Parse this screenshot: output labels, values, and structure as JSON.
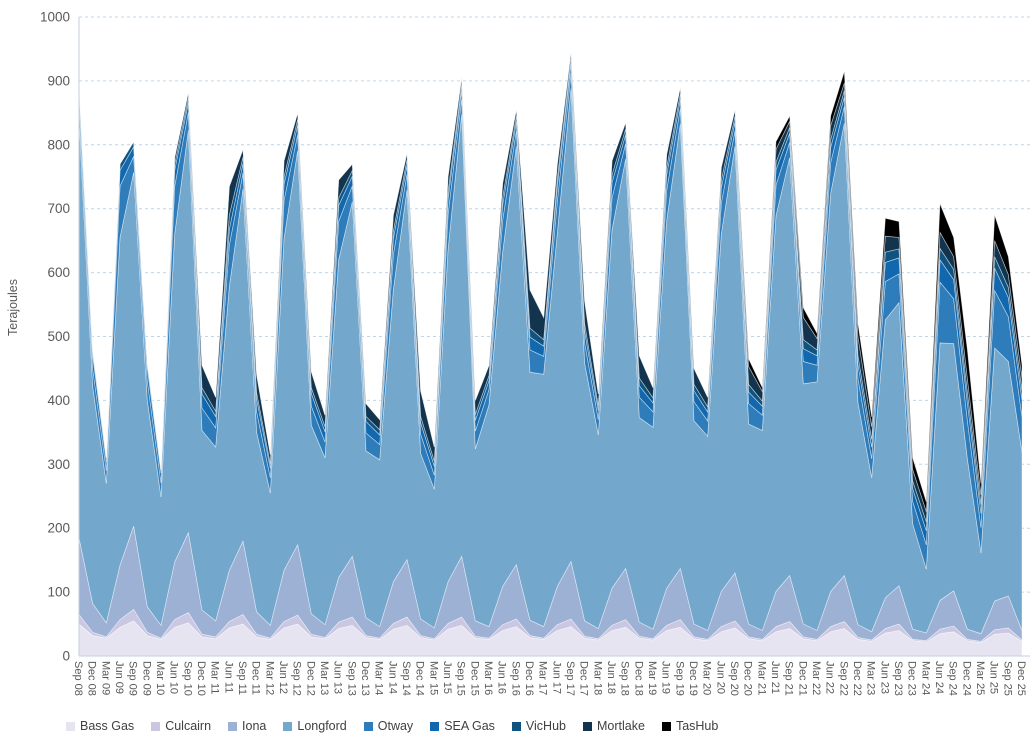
{
  "y_axis_title": "Terajoules",
  "chart_data": {
    "type": "area",
    "stacked": true,
    "title": "",
    "xlabel": "",
    "ylabel": "Terajoules",
    "ylim": [
      0,
      1000
    ],
    "yticks": [
      0,
      100,
      200,
      300,
      400,
      500,
      600,
      700,
      800,
      900,
      1000
    ],
    "grid": "horizontal-dashed",
    "legend_position": "bottom",
    "categories": [
      "Sep 08",
      "Dec 08",
      "Mar 09",
      "Jun 09",
      "Sep 09",
      "Dec 09",
      "Mar 10",
      "Jun 10",
      "Sep 10",
      "Dec 10",
      "Mar 11",
      "Jun 11",
      "Sep 11",
      "Dec 11",
      "Mar 12",
      "Jun 12",
      "Sep 12",
      "Dec 12",
      "Mar 13",
      "Jun 13",
      "Sep 13",
      "Dec 13",
      "Mar 14",
      "Jun 14",
      "Sep 14",
      "Dec 14",
      "Mar 15",
      "Jun 15",
      "Sep 15",
      "Dec 15",
      "Mar 16",
      "Jun 16",
      "Sep 16",
      "Dec 16",
      "Mar 17",
      "Jun 17",
      "Sep 17",
      "Dec 17",
      "Mar 18",
      "Jun 18",
      "Sep 18",
      "Dec 18",
      "Mar 19",
      "Jun 19",
      "Sep 19",
      "Dec 19",
      "Mar 20",
      "Jun 20",
      "Sep 20",
      "Dec 20",
      "Mar 21",
      "Jun 21",
      "Sep 21",
      "Dec 21",
      "Mar 22",
      "Jun 22",
      "Sep 22",
      "Dec 22",
      "Mar 23",
      "Jun 23",
      "Sep 23",
      "Dec 23",
      "Mar 24",
      "Jun 24",
      "Sep 24",
      "Dec 24",
      "Mar 25",
      "Jun 25",
      "Sep 25",
      "Dec 25"
    ],
    "series": [
      {
        "name": "Bass Gas",
        "color": "#e7e4f1",
        "values": [
          50,
          32,
          28,
          45,
          55,
          32,
          26,
          45,
          52,
          30,
          27,
          44,
          50,
          30,
          26,
          44,
          50,
          30,
          27,
          43,
          48,
          29,
          26,
          42,
          48,
          29,
          25,
          42,
          48,
          28,
          26,
          40,
          46,
          29,
          26,
          40,
          46,
          28,
          25,
          40,
          45,
          28,
          25,
          40,
          45,
          27,
          24,
          38,
          44,
          27,
          24,
          38,
          43,
          27,
          24,
          38,
          43,
          26,
          23,
          36,
          40,
          24,
          22,
          35,
          38,
          24,
          21,
          34,
          36,
          23
        ]
      },
      {
        "name": "Culcairn",
        "color": "#c9c7e2",
        "values": [
          15,
          5,
          2,
          12,
          18,
          5,
          2,
          12,
          16,
          4,
          3,
          10,
          15,
          4,
          2,
          10,
          14,
          4,
          2,
          10,
          13,
          3,
          2,
          9,
          13,
          3,
          2,
          9,
          13,
          3,
          2,
          9,
          12,
          3,
          2,
          9,
          12,
          3,
          2,
          8,
          12,
          3,
          2,
          8,
          12,
          3,
          2,
          8,
          11,
          3,
          2,
          8,
          11,
          3,
          2,
          8,
          11,
          3,
          2,
          7,
          10,
          2,
          2,
          7,
          9,
          2,
          2,
          7,
          8,
          2
        ]
      },
      {
        "name": "Iona",
        "color": "#9db1d5",
        "values": [
          120,
          45,
          22,
          85,
          130,
          40,
          20,
          90,
          125,
          38,
          25,
          80,
          115,
          35,
          20,
          80,
          110,
          32,
          20,
          70,
          95,
          28,
          18,
          65,
          90,
          26,
          17,
          65,
          95,
          24,
          18,
          60,
          85,
          24,
          18,
          60,
          90,
          24,
          16,
          58,
          80,
          22,
          15,
          58,
          80,
          20,
          14,
          55,
          75,
          20,
          14,
          55,
          72,
          20,
          14,
          55,
          72,
          20,
          13,
          48,
          60,
          16,
          12,
          45,
          55,
          16,
          12,
          45,
          50,
          15
        ]
      },
      {
        "name": "Longford",
        "color": "#74a7cc",
        "values": [
          659,
          340,
          218,
          513,
          554,
          323,
          201,
          513,
          630,
          281,
          272,
          444,
          551,
          281,
          207,
          519,
          617,
          295,
          261,
          497,
          555,
          261,
          261,
          457,
          579,
          259,
          217,
          519,
          692,
          269,
          347,
          523,
          655,
          388,
          395,
          553,
          740,
          403,
          303,
          561,
          641,
          320,
          316,
          575,
          696,
          318,
          304,
          560,
          668,
          313,
          313,
          588,
          654,
          376,
          389,
          623,
          708,
          347,
          241,
          435,
          443,
          165,
          100,
          403,
          387,
          267,
          126,
          396,
          367,
          279
        ]
      },
      {
        "name": "Otway",
        "color": "#2e7cba",
        "values": [
          25,
          28,
          20,
          80,
          25,
          30,
          22,
          75,
          28,
          35,
          30,
          65,
          25,
          32,
          24,
          60,
          25,
          30,
          25,
          60,
          25,
          28,
          24,
          55,
          24,
          30,
          22,
          55,
          24,
          28,
          24,
          50,
          24,
          35,
          28,
          50,
          24,
          32,
          24,
          50,
          24,
          32,
          24,
          48,
          24,
          30,
          24,
          48,
          24,
          32,
          24,
          48,
          24,
          35,
          26,
          48,
          26,
          38,
          30,
          60,
          45,
          35,
          38,
          95,
          70,
          60,
          40,
          90,
          70,
          55
        ]
      },
      {
        "name": "SEA Gas",
        "color": "#1268ae",
        "values": [
          18,
          20,
          14,
          25,
          15,
          20,
          15,
          25,
          15,
          22,
          18,
          25,
          15,
          20,
          15,
          25,
          15,
          20,
          16,
          25,
          15,
          18,
          15,
          25,
          14,
          18,
          14,
          24,
          14,
          17,
          14,
          24,
          14,
          20,
          16,
          24,
          14,
          18,
          14,
          24,
          14,
          18,
          14,
          24,
          14,
          17,
          14,
          24,
          14,
          18,
          14,
          24,
          14,
          20,
          15,
          24,
          15,
          22,
          18,
          30,
          25,
          20,
          22,
          35,
          30,
          28,
          22,
          35,
          30,
          26
        ]
      },
      {
        "name": "VicHub",
        "color": "#0f5480",
        "values": [
          8,
          8,
          6,
          10,
          8,
          8,
          6,
          10,
          8,
          10,
          8,
          22,
          10,
          10,
          7,
          12,
          9,
          9,
          8,
          12,
          9,
          8,
          8,
          12,
          9,
          10,
          8,
          12,
          9,
          9,
          8,
          12,
          9,
          14,
          10,
          12,
          9,
          12,
          8,
          12,
          9,
          12,
          8,
          12,
          9,
          10,
          8,
          12,
          9,
          12,
          8,
          12,
          9,
          14,
          9,
          12,
          10,
          14,
          12,
          16,
          14,
          12,
          14,
          18,
          16,
          16,
          14,
          18,
          16,
          15
        ]
      },
      {
        "name": "Mortlake",
        "color": "#12344e",
        "values": [
          0,
          0,
          0,
          0,
          0,
          0,
          0,
          10,
          8,
          35,
          22,
          45,
          12,
          28,
          14,
          25,
          10,
          25,
          18,
          28,
          10,
          20,
          16,
          25,
          10,
          40,
          22,
          24,
          10,
          22,
          16,
          22,
          10,
          60,
          35,
          22,
          10,
          35,
          18,
          22,
          10,
          35,
          16,
          20,
          10,
          25,
          15,
          20,
          10,
          28,
          15,
          20,
          10,
          35,
          18,
          22,
          12,
          30,
          20,
          25,
          18,
          18,
          16,
          25,
          20,
          22,
          15,
          25,
          20,
          20
        ]
      },
      {
        "name": "TasHub",
        "color": "#000000",
        "values": [
          0,
          0,
          0,
          0,
          0,
          0,
          0,
          0,
          0,
          0,
          0,
          0,
          0,
          0,
          0,
          0,
          0,
          0,
          0,
          0,
          0,
          0,
          0,
          0,
          0,
          0,
          0,
          0,
          0,
          0,
          0,
          0,
          0,
          0,
          0,
          0,
          0,
          0,
          0,
          0,
          0,
          0,
          0,
          0,
          0,
          0,
          0,
          0,
          0,
          12,
          6,
          12,
          8,
          15,
          8,
          15,
          18,
          20,
          15,
          28,
          25,
          18,
          15,
          45,
          30,
          45,
          18,
          40,
          28,
          20
        ]
      }
    ],
    "style": {
      "grid_color": "#bdd6ec",
      "axis_color": "#c5cde6",
      "tick_label_color": "#595959",
      "legend_label_color": "#404040",
      "band_edge_color": "#ffffff"
    }
  }
}
